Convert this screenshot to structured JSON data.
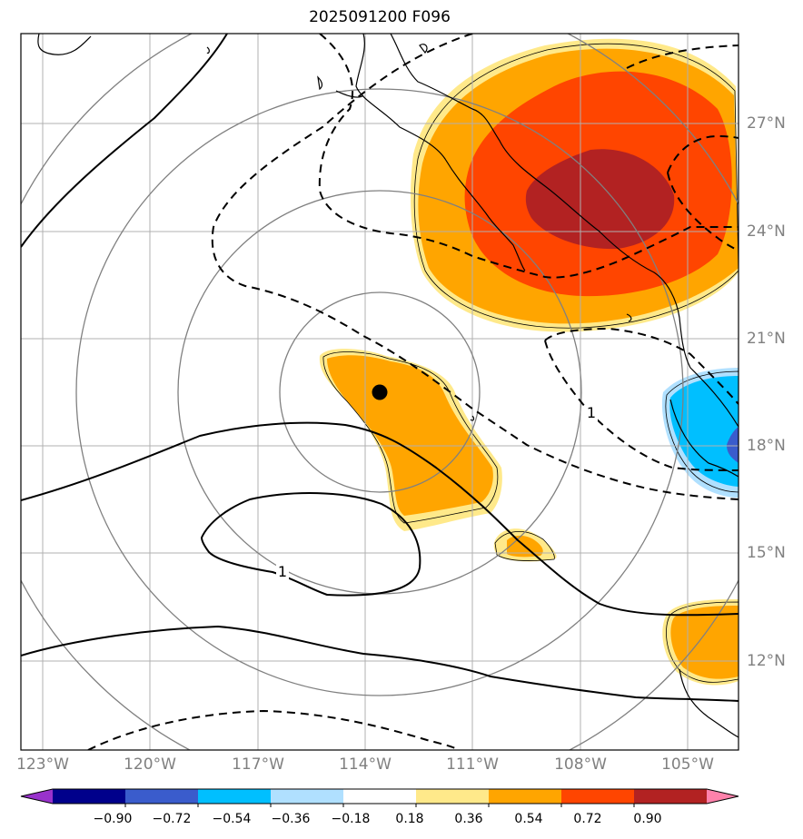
{
  "title": "2025091200 F096",
  "map": {
    "lon_labels": [
      "123°W",
      "120°W",
      "117°W",
      "114°W",
      "111°W",
      "108°W",
      "105°W"
    ],
    "lat_labels": [
      "27°N",
      "24°N",
      "21°N",
      "18°N",
      "15°N",
      "12°N"
    ],
    "contour_labels": [
      "1",
      "1"
    ],
    "storm_marker": "storm-center"
  },
  "colorbar": {
    "ticks": [
      "−0.90",
      "−0.72",
      "−0.54",
      "−0.36",
      "−0.18",
      "0.18",
      "0.36",
      "0.54",
      "0.72",
      "0.90"
    ],
    "colors": [
      "#9932cc",
      "#00008b",
      "#3a5ccc",
      "#00bfff",
      "#b0e0ff",
      "#ffffff",
      "#ffe98a",
      "#ffa500",
      "#ff4500",
      "#b22222",
      "#ff82ab"
    ]
  }
}
